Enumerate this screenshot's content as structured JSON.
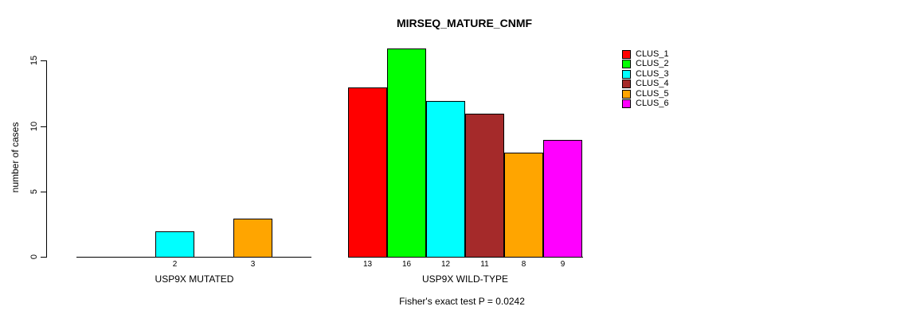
{
  "chart_data": {
    "type": "bar",
    "title": "MIRSEQ_MATURE_CNMF",
    "ylabel": "number of cases",
    "xlabel": "",
    "ylim": [
      0,
      16
    ],
    "yticks": [
      0,
      5,
      10,
      15
    ],
    "grid": false,
    "legend_position": "top-right",
    "legend": [
      {
        "label": "CLUS_1",
        "color": "#FF0000"
      },
      {
        "label": "CLUS_2",
        "color": "#00FF00"
      },
      {
        "label": "CLUS_3",
        "color": "#00FFFF"
      },
      {
        "label": "CLUS_4",
        "color": "#A52A2A"
      },
      {
        "label": "CLUS_5",
        "color": "#FFA500"
      },
      {
        "label": "CLUS_6",
        "color": "#FF00FF"
      }
    ],
    "groups": [
      {
        "label": "USP9X MUTATED",
        "bars": [
          {
            "cluster": "CLUS_3",
            "value": 2
          },
          {
            "cluster": "CLUS_5",
            "value": 3
          }
        ]
      },
      {
        "label": "USP9X WILD-TYPE",
        "bars": [
          {
            "cluster": "CLUS_1",
            "value": 13
          },
          {
            "cluster": "CLUS_2",
            "value": 16
          },
          {
            "cluster": "CLUS_3",
            "value": 12
          },
          {
            "cluster": "CLUS_4",
            "value": 11
          },
          {
            "cluster": "CLUS_5",
            "value": 8
          },
          {
            "cluster": "CLUS_6",
            "value": 9
          }
        ]
      }
    ],
    "footnote": "Fisher's exact test P = 0.0242"
  }
}
